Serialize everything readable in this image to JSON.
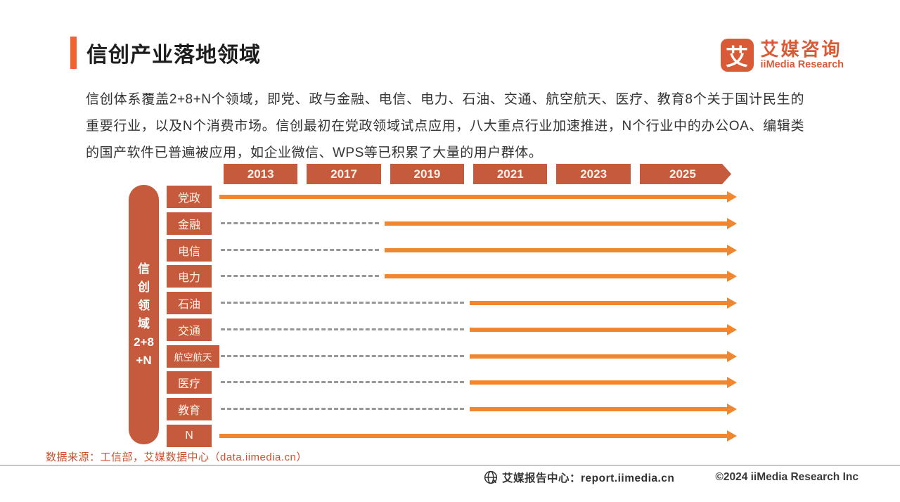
{
  "header": {
    "title": "信创产业落地领域"
  },
  "logo": {
    "badge_char": "艾",
    "name_cn": "艾媒咨询",
    "name_en": "iiMedia Research"
  },
  "intro": "信创体系覆盖2+8+N个领域，即党、政与金融、电信、电力、石油、交通、航空航天、医疗、教育8个关于国计民生的重要行业，以及N个消费市场。信创最初在党政领域试点应用，八大重点行业加速推进，N个行业中的办公OA、编辑类的国产软件已普遍被应用，如企业微信、WPS等已积累了大量的用户群体。",
  "chart_data": {
    "type": "timeline",
    "title": "信创产业落地领域",
    "axis_group_label_lines": [
      "信",
      "创",
      "领",
      "域",
      "2+8",
      "+N"
    ],
    "years": [
      "2013",
      "2017",
      "2019",
      "2021",
      "2023",
      "2025"
    ],
    "rows": [
      {
        "label": "党政",
        "solid_from": "2013",
        "dashed_before": false
      },
      {
        "label": "金融",
        "solid_from": "2019",
        "dashed_before": true
      },
      {
        "label": "电信",
        "solid_from": "2019",
        "dashed_before": true
      },
      {
        "label": "电力",
        "solid_from": "2019",
        "dashed_before": true
      },
      {
        "label": "石油",
        "solid_from": "2021",
        "dashed_before": true
      },
      {
        "label": "交通",
        "solid_from": "2021",
        "dashed_before": true
      },
      {
        "label": "航空航天",
        "solid_from": "2021",
        "dashed_before": true
      },
      {
        "label": "医疗",
        "solid_from": "2021",
        "dashed_before": true
      },
      {
        "label": "教育",
        "solid_from": "2021",
        "dashed_before": true
      },
      {
        "label": "N",
        "solid_from": "2013",
        "dashed_before": false
      }
    ],
    "legend_position": "none",
    "grid": false,
    "colors": {
      "box": "#C65A3C",
      "solid_arrow": "#F0862F",
      "dashed_line": "#979797",
      "accent": "#F4622F"
    }
  },
  "source": "数据来源：工信部，艾媒数据中心（data.iimedia.cn）",
  "footer": {
    "report_center": "艾媒报告中心：report.iimedia.cn",
    "copyright": "©2024  iiMedia Research Inc"
  }
}
